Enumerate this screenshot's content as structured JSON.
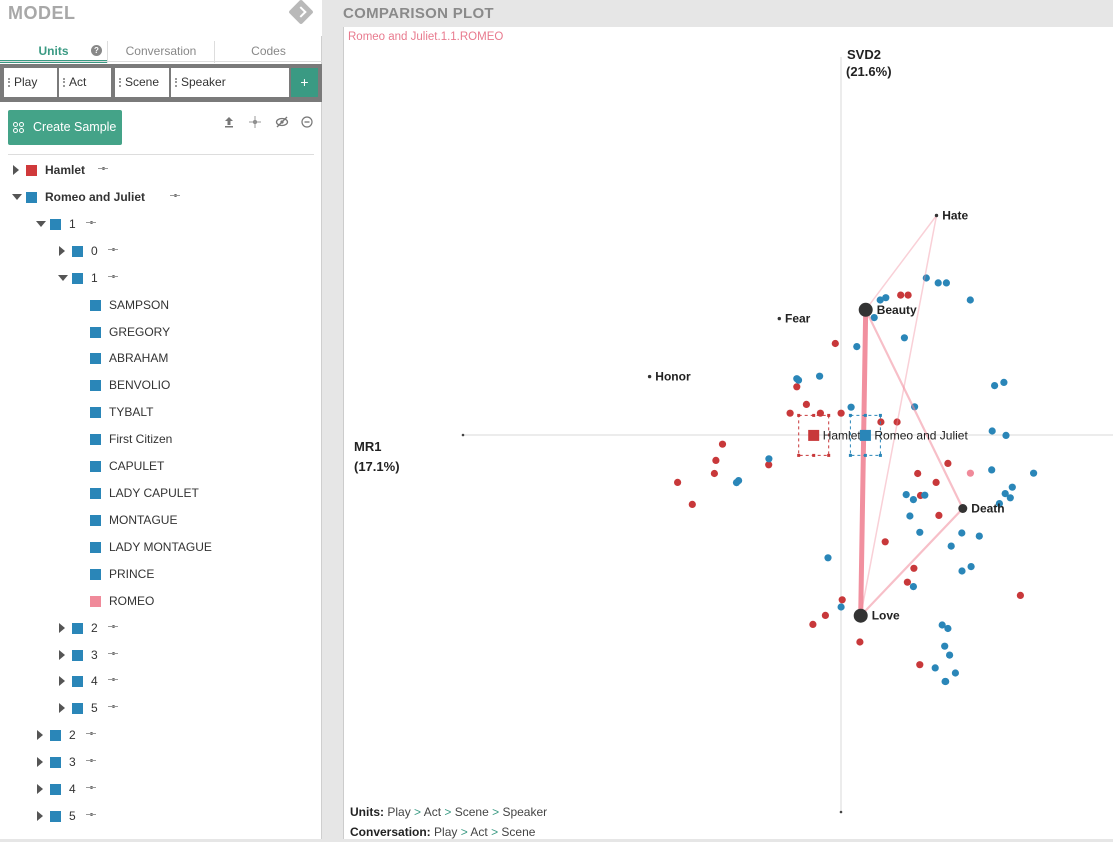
{
  "left_panel": {
    "title": "MODEL",
    "tabs": {
      "units": "Units",
      "units_help": "?",
      "conversation": "Conversation",
      "codes": "Codes"
    },
    "unit_chips": [
      "Play",
      "Act",
      "Scene",
      "Speaker"
    ],
    "add_button": "+",
    "create_sample": "Create Sample",
    "tree": [
      {
        "label": "Hamlet",
        "level": 0,
        "bold": true,
        "caret": "right",
        "color": "#d0393b",
        "pin": true
      },
      {
        "label": "Romeo and Juliet",
        "level": 0,
        "bold": true,
        "caret": "down",
        "color": "#2a86b8",
        "pin": true
      },
      {
        "label": "1",
        "level": 1,
        "caret": "down",
        "color": "#2a86b8",
        "pin": true
      },
      {
        "label": "0",
        "level": 2,
        "caret": "right",
        "color": "#2a86b8",
        "pin": true
      },
      {
        "label": "1",
        "level": 2,
        "caret": "down",
        "color": "#2a86b8",
        "pin": true
      },
      {
        "label": "SAMPSON",
        "level": 3,
        "color": "#2a86b8"
      },
      {
        "label": "GREGORY",
        "level": 3,
        "color": "#2a86b8"
      },
      {
        "label": "ABRAHAM",
        "level": 3,
        "color": "#2a86b8"
      },
      {
        "label": "BENVOLIO",
        "level": 3,
        "color": "#2a86b8"
      },
      {
        "label": "TYBALT",
        "level": 3,
        "color": "#2a86b8"
      },
      {
        "label": "First Citizen",
        "level": 3,
        "color": "#2a86b8"
      },
      {
        "label": "CAPULET",
        "level": 3,
        "color": "#2a86b8"
      },
      {
        "label": "LADY CAPULET",
        "level": 3,
        "color": "#2a86b8"
      },
      {
        "label": "MONTAGUE",
        "level": 3,
        "color": "#2a86b8"
      },
      {
        "label": "LADY MONTAGUE",
        "level": 3,
        "color": "#2a86b8"
      },
      {
        "label": "PRINCE",
        "level": 3,
        "color": "#2a86b8"
      },
      {
        "label": "ROMEO",
        "level": 3,
        "color": "#f08a9a"
      },
      {
        "label": "2",
        "level": 2,
        "caret": "right",
        "color": "#2a86b8",
        "pin": true
      },
      {
        "label": "3",
        "level": 2,
        "caret": "right",
        "color": "#2a86b8",
        "pin": true
      },
      {
        "label": "4",
        "level": 2,
        "caret": "right",
        "color": "#2a86b8",
        "pin": true
      },
      {
        "label": "5",
        "level": 2,
        "caret": "right",
        "color": "#2a86b8",
        "pin": true
      },
      {
        "label": "2",
        "level": 1,
        "caret": "right",
        "color": "#2a86b8",
        "pin": true
      },
      {
        "label": "3",
        "level": 1,
        "caret": "right",
        "color": "#2a86b8",
        "pin": true
      },
      {
        "label": "4",
        "level": 1,
        "caret": "right",
        "color": "#2a86b8",
        "pin": true
      },
      {
        "label": "5",
        "level": 1,
        "caret": "right",
        "color": "#2a86b8",
        "pin": true
      }
    ]
  },
  "right_panel": {
    "title": "COMPARISON PLOT",
    "subtitle": "Romeo and Juliet.1.1.ROMEO",
    "footer": {
      "units_label": "Units:",
      "units_path": [
        "Play",
        "Act",
        "Scene",
        "Speaker"
      ],
      "conversation_label": "Conversation:",
      "conversation_path": [
        "Play",
        "Act",
        "Scene"
      ],
      "separator": ">"
    }
  },
  "chart_data": {
    "type": "scatter",
    "xlabel": "MR1",
    "xlabel_pct": "(17.1%)",
    "ylabel": "SVD2",
    "ylabel_pct": "(21.6%)",
    "colors": {
      "hamlet": "#c8383a",
      "romeo_juliet": "#2a86b8",
      "selected": "#f08a9a",
      "network_line": "#f08a9a",
      "node": "#333333"
    },
    "codes": [
      {
        "name": "Hate",
        "x": 0.0955,
        "y": 0.2195,
        "size": "small"
      },
      {
        "name": "Beauty",
        "x": 0.0247,
        "y": 0.1252,
        "size": "large"
      },
      {
        "name": "Fear",
        "x": -0.0617,
        "y": 0.1164,
        "size": "small"
      },
      {
        "name": "Honor",
        "x": -0.1914,
        "y": 0.0584,
        "size": "small"
      },
      {
        "name": "Death",
        "x": 0.1218,
        "y": -0.0735,
        "size": "medium"
      },
      {
        "name": "Love",
        "x": 0.0197,
        "y": -0.1807,
        "size": "large"
      }
    ],
    "edges": [
      {
        "from": "Beauty",
        "to": "Love",
        "weight": 3
      },
      {
        "from": "Beauty",
        "to": "Death",
        "weight": 1
      },
      {
        "from": "Love",
        "to": "Death",
        "weight": 1
      },
      {
        "from": "Hate",
        "to": "Love",
        "weight": 0.5
      },
      {
        "from": "Hate",
        "to": "Beauty",
        "weight": 0.5
      }
    ],
    "means": [
      {
        "name": "Hamlet",
        "x": -0.0273,
        "y": -0.0004,
        "group": "hamlet"
      },
      {
        "name": "Romeo and Juliet",
        "x": 0.0244,
        "y": -0.0004,
        "group": "romeo_juliet"
      }
    ],
    "hamlet_points": [
      [
        0.0597,
        0.1399
      ],
      [
        0.0671,
        0.1399
      ],
      [
        -0.0057,
        0.0915
      ],
      [
        -0.0442,
        0.0482
      ],
      [
        -0.0346,
        0.0306
      ],
      [
        -0.0509,
        0.0218
      ],
      [
        -0.0206,
        0.0218
      ],
      [
        0.0001,
        0.0218
      ],
      [
        0.0399,
        0.013
      ],
      [
        0.0561,
        0.013
      ],
      [
        -0.1185,
        -0.0092
      ],
      [
        -0.1251,
        -0.0254
      ],
      [
        -0.0723,
        -0.0298
      ],
      [
        -0.1266,
        -0.0385
      ],
      [
        -0.1634,
        -0.0474
      ],
      [
        -0.1487,
        -0.0694
      ],
      [
        0.0767,
        -0.0385
      ],
      [
        0.0951,
        -0.0474
      ],
      [
        0.0795,
        -0.0605
      ],
      [
        0.0979,
        -0.0804
      ],
      [
        0.0442,
        -0.1068
      ],
      [
        0.0729,
        -0.1333
      ],
      [
        0.0664,
        -0.1472
      ],
      [
        -0.0156,
        -0.1804
      ],
      [
        0.1794,
        -0.1604
      ],
      [
        0.0012,
        -0.1648
      ],
      [
        -0.0281,
        -0.1894
      ],
      [
        0.0189,
        -0.207
      ],
      [
        0.0788,
        -0.2297
      ],
      [
        0.1069,
        -0.0284
      ]
    ],
    "rj_points": [
      [
        0.0853,
        0.157
      ],
      [
        0.0972,
        0.1521
      ],
      [
        0.1054,
        0.1521
      ],
      [
        0.1293,
        0.135
      ],
      [
        0.0448,
        0.1373
      ],
      [
        0.0392,
        0.135
      ],
      [
        0.0332,
        0.1174
      ],
      [
        0.0634,
        0.0972
      ],
      [
        0.0158,
        0.0884
      ],
      [
        -0.0442,
        0.0563
      ],
      [
        -0.0214,
        0.0588
      ],
      [
        -0.0425,
        0.0548
      ],
      [
        0.0736,
        0.0282
      ],
      [
        0.1536,
        0.0494
      ],
      [
        0.1629,
        0.0526
      ],
      [
        0.1512,
        0.004
      ],
      [
        0.165,
        -0.0004
      ],
      [
        -0.0721,
        -0.0238
      ],
      [
        -0.1024,
        -0.0456
      ],
      [
        -0.1045,
        -0.0476
      ],
      [
        0.1507,
        -0.0349
      ],
      [
        0.1926,
        -0.0382
      ],
      [
        0.1713,
        -0.0522
      ],
      [
        0.1642,
        -0.0586
      ],
      [
        0.1693,
        -0.0628
      ],
      [
        0.1584,
        -0.0686
      ],
      [
        0.0652,
        -0.0596
      ],
      [
        0.0724,
        -0.0646
      ],
      [
        0.0838,
        -0.0602
      ],
      [
        0.0689,
        -0.081
      ],
      [
        0.0788,
        -0.0973
      ],
      [
        0.1208,
        -0.098
      ],
      [
        0.1383,
        -0.1011
      ],
      [
        0.1102,
        -0.1111
      ],
      [
        0.121,
        -0.136
      ],
      [
        0.1301,
        -0.1316
      ],
      [
        0.0724,
        -0.1516
      ],
      [
        -0.013,
        -0.1228
      ],
      [
        0.0001,
        -0.172
      ],
      [
        0.1012,
        -0.19
      ],
      [
        0.1069,
        -0.1935
      ],
      [
        0.1037,
        -0.2112
      ],
      [
        0.1086,
        -0.2201
      ],
      [
        0.1144,
        -0.238
      ],
      [
        0.0942,
        -0.2329
      ],
      [
        0.1041,
        -0.2465
      ],
      [
        0.1047,
        -0.2465
      ],
      [
        0.0101,
        0.0278
      ]
    ],
    "selected_point": [
      0.1294,
      -0.0382
    ]
  }
}
